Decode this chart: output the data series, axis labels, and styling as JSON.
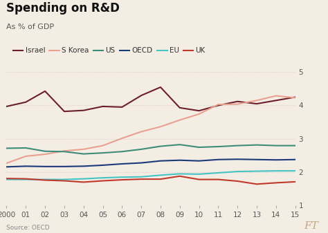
{
  "title": "Spending on R&D",
  "subtitle": "As % of GDP",
  "source": "Source: OECD",
  "ft_label": "FT",
  "years": [
    2000,
    2001,
    2002,
    2003,
    2004,
    2005,
    2006,
    2007,
    2008,
    2009,
    2010,
    2011,
    2012,
    2013,
    2014,
    2015
  ],
  "series": {
    "Israel": [
      3.97,
      4.1,
      4.43,
      3.82,
      3.85,
      3.97,
      3.95,
      4.3,
      4.55,
      3.93,
      3.84,
      4.0,
      4.12,
      4.05,
      4.15,
      4.25
    ],
    "S Korea": [
      2.26,
      2.47,
      2.53,
      2.63,
      2.68,
      2.79,
      3.01,
      3.21,
      3.36,
      3.56,
      3.74,
      4.03,
      4.04,
      4.15,
      4.29,
      4.23
    ],
    "US": [
      2.71,
      2.72,
      2.62,
      2.61,
      2.54,
      2.57,
      2.61,
      2.68,
      2.77,
      2.82,
      2.74,
      2.76,
      2.79,
      2.81,
      2.79,
      2.79
    ],
    "OECD": [
      2.15,
      2.17,
      2.16,
      2.16,
      2.17,
      2.2,
      2.24,
      2.27,
      2.33,
      2.35,
      2.33,
      2.37,
      2.38,
      2.37,
      2.36,
      2.37
    ],
    "EU": [
      1.77,
      1.77,
      1.77,
      1.77,
      1.79,
      1.82,
      1.84,
      1.85,
      1.9,
      1.94,
      1.93,
      1.97,
      2.01,
      2.02,
      2.03,
      2.03
    ],
    "UK": [
      1.8,
      1.79,
      1.75,
      1.73,
      1.69,
      1.73,
      1.76,
      1.78,
      1.78,
      1.87,
      1.77,
      1.77,
      1.72,
      1.63,
      1.67,
      1.7
    ]
  },
  "colors": {
    "Israel": "#6b1f2a",
    "S Korea": "#e8a090",
    "US": "#3d8c78",
    "OECD": "#1a3a7a",
    "EU": "#45c4c4",
    "UK": "#c0392b"
  },
  "ylim": [
    1,
    5
  ],
  "yticks": [
    1,
    2,
    3,
    4,
    5
  ],
  "background_color": "#f4ede4",
  "grid_color": "#d9cfc6",
  "title_fontsize": 12,
  "subtitle_fontsize": 8,
  "tick_fontsize": 7.5,
  "legend_fontsize": 7.5
}
